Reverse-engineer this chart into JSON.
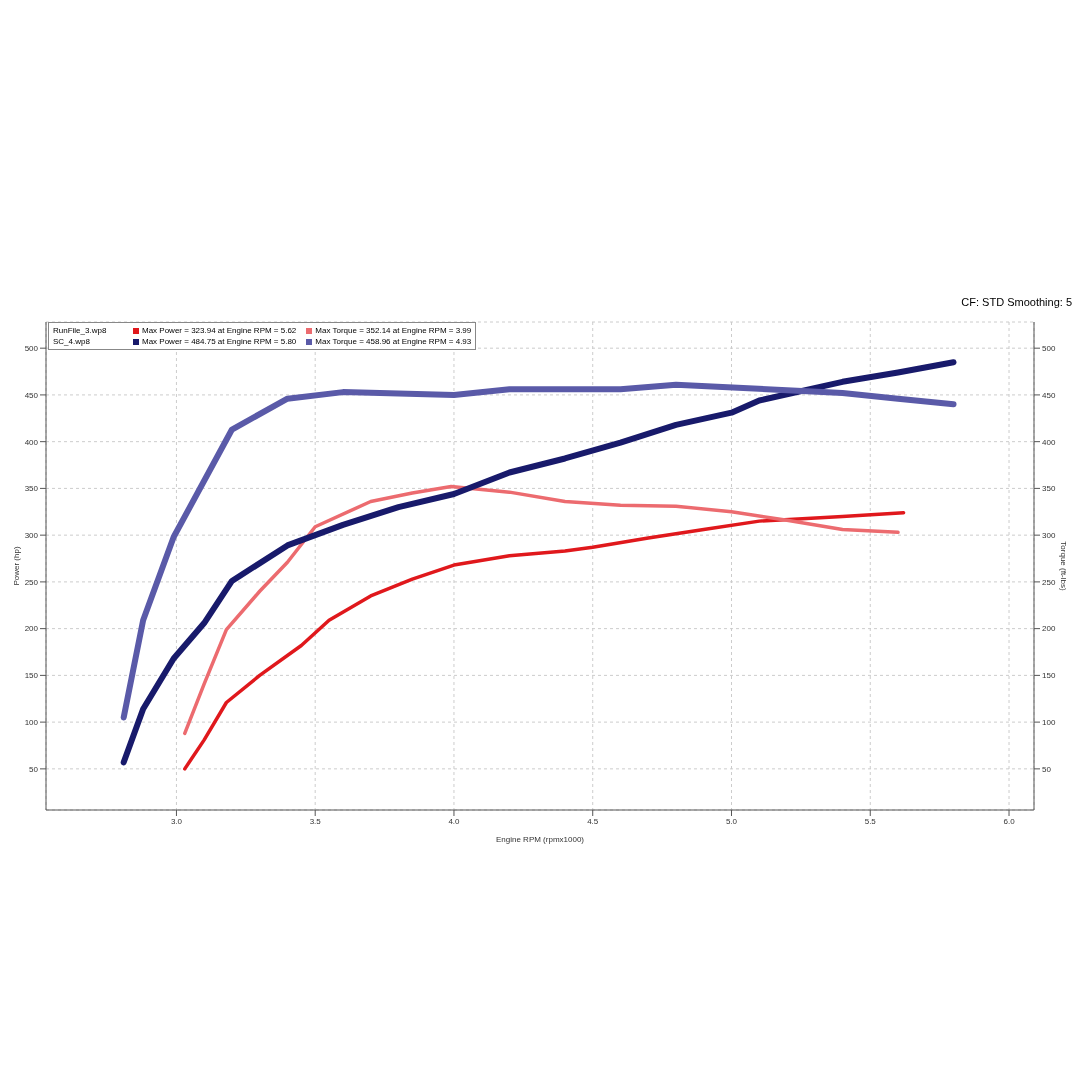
{
  "chart_data": {
    "type": "line",
    "xlabel": "Engine RPM (rpmx1000)",
    "ylabel": "Power (hp)",
    "y2label": "Torque (ft-lbs)",
    "annotations": [
      "RunFile_3.wp8",
      "SC_4.wp8",
      "CF: STD Smoothing: 5"
    ],
    "xlim": [
      2.53,
      6.09
    ],
    "xticks": [
      {
        "value": 3,
        "label": "3.0"
      },
      {
        "value": 3.5,
        "label": "3.5"
      },
      {
        "value": 4,
        "label": "4.0"
      },
      {
        "value": 4.5,
        "label": "4.5"
      },
      {
        "value": 5,
        "label": "5.0"
      },
      {
        "value": 5.5,
        "label": "5.5"
      },
      {
        "value": 6,
        "label": "6.0"
      }
    ],
    "ylim": [
      6,
      528
    ],
    "yticks": [
      50,
      100,
      150,
      200,
      250,
      300,
      350,
      400,
      450,
      500
    ],
    "y2lim": [
      6,
      528
    ],
    "y2ticks": [
      50,
      100,
      150,
      200,
      250,
      300,
      350,
      400,
      450,
      500
    ],
    "grid": true,
    "legend": "top left",
    "line_style": "solid",
    "marker": "none",
    "series": [
      {
        "name": "Max Power = 323.94 at Engine RPM = 5.62",
        "color": "#e0181c",
        "x": [
          3.03,
          3.1,
          3.18,
          3.3,
          3.45,
          3.55,
          3.7,
          3.85,
          4.0,
          4.2,
          4.4,
          4.5,
          4.7,
          4.9,
          5.1,
          5.4,
          5.62
        ],
        "values": [
          50,
          81,
          121,
          150,
          182,
          209,
          235,
          253,
          268,
          278,
          283,
          287,
          297,
          306,
          315,
          320,
          324
        ]
      },
      {
        "name": "Max Torque = 352.14 at Engine RPM = 3.99",
        "color": "#ec6b6f",
        "x": [
          3.03,
          3.1,
          3.18,
          3.3,
          3.4,
          3.5,
          3.7,
          3.85,
          3.99,
          4.2,
          4.4,
          4.6,
          4.8,
          5.0,
          5.2,
          5.4,
          5.6
        ],
        "values": [
          88,
          141,
          199,
          240,
          271,
          309,
          336,
          345,
          352,
          346,
          336,
          332,
          331,
          325,
          316,
          306,
          303
        ]
      },
      {
        "name": "Max Power = 484.75 at Engine RPM = 5.80",
        "color": "#181a6b",
        "x": [
          2.81,
          2.88,
          2.99,
          3.1,
          3.2,
          3.4,
          3.6,
          3.8,
          4.0,
          4.2,
          4.4,
          4.6,
          4.8,
          5.0,
          5.1,
          5.4,
          5.6,
          5.8
        ],
        "values": [
          57,
          114,
          168,
          206,
          251,
          289,
          311,
          330,
          344,
          367,
          382,
          399,
          418,
          431,
          444,
          464,
          474,
          485
        ]
      },
      {
        "name": "Max Torque = 458.96 at Engine RPM = 4.93",
        "color": "#5a5aa8",
        "x": [
          2.81,
          2.88,
          2.99,
          3.2,
          3.4,
          3.6,
          4.0,
          4.2,
          4.6,
          4.8,
          4.93,
          5.2,
          5.4,
          5.6,
          5.8
        ],
        "values": [
          105,
          209,
          298,
          413,
          446,
          453,
          450,
          456,
          456,
          461,
          459,
          455,
          452,
          446,
          440
        ]
      }
    ]
  }
}
